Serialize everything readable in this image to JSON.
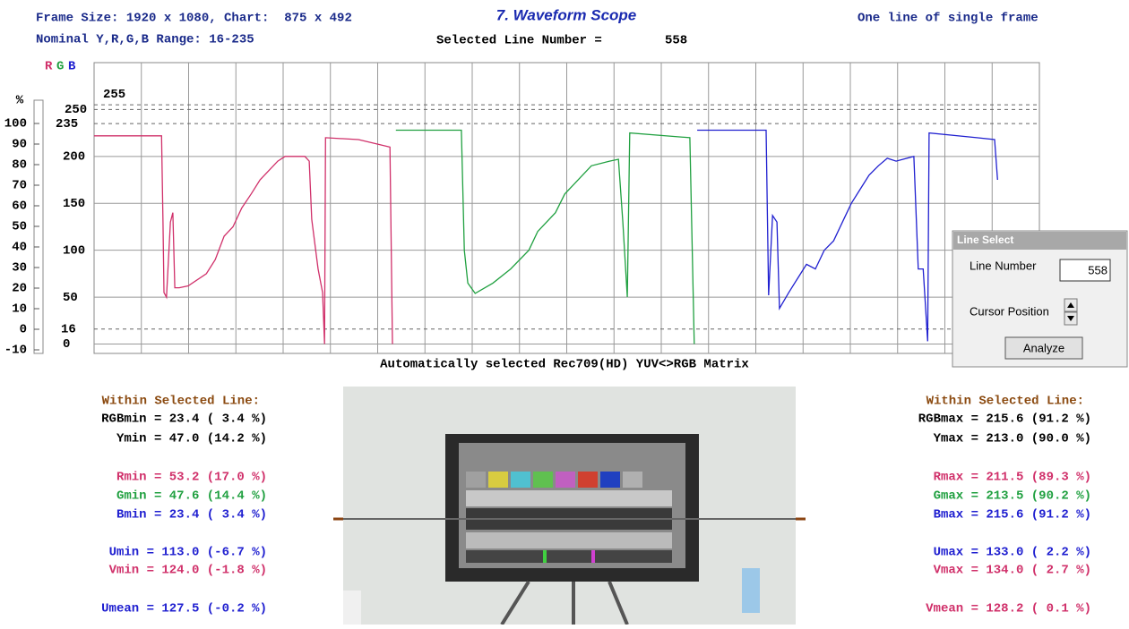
{
  "header": {
    "frame_size": "Frame Size: 1920 x 1080, Chart:  875 x 492",
    "range": "Nominal Y,R,G,B Range: 16-235",
    "title": "7. Waveform Scope",
    "line_label": "Selected Line Number =",
    "line_number": "558",
    "mode": "One line of single frame"
  },
  "scope": {
    "legend": [
      {
        "label": "R",
        "color": "#d0306a"
      },
      {
        "label": "G",
        "color": "#20a040"
      },
      {
        "label": "B",
        "color": "#2020d0"
      }
    ],
    "percent_label": "%",
    "plim": [
      -10,
      100
    ],
    "percent_ticks": [
      -10,
      0,
      10,
      20,
      30,
      40,
      50,
      60,
      70,
      80,
      90,
      100
    ],
    "ylim": [
      -10,
      300
    ],
    "xlim": [
      0,
      1920
    ],
    "code_ticks": [
      0,
      50,
      100,
      150,
      200
    ],
    "ref_lines": [
      16,
      235,
      250,
      255
    ],
    "matrix": "Automatically selected Rec709(HD) YUV<>RGB Matrix",
    "traces": [
      {
        "name": "R",
        "color": "#d0306a",
        "x": [
          0,
          137,
          140,
          142,
          147,
          155,
          160,
          164,
          173,
          191,
          228,
          246,
          264,
          282,
          300,
          319,
          337,
          355,
          373,
          388,
          428,
          437,
          442,
          455,
          464,
          468,
          470,
          537,
          601,
          606
        ],
        "values": [
          222,
          222,
          130,
          55,
          50,
          130,
          140,
          60,
          60,
          62,
          75,
          90,
          115,
          125,
          145,
          160,
          175,
          185,
          195,
          200,
          200,
          195,
          133,
          80,
          55,
          0,
          220,
          218,
          210,
          0
        ]
      },
      {
        "name": "G",
        "color": "#20a040",
        "x": [
          613,
          746,
          752,
          759,
          774,
          810,
          846,
          883,
          901,
          937,
          956,
          992,
          1010,
          1047,
          1065,
          1074,
          1083,
          1088,
          1210,
          1219
        ],
        "values": [
          228,
          228,
          100,
          65,
          54,
          65,
          80,
          100,
          120,
          140,
          160,
          180,
          190,
          195,
          197,
          130,
          50,
          225,
          220,
          0
        ]
      },
      {
        "name": "B",
        "color": "#2020d0",
        "x": [
          1225,
          1365,
          1370,
          1378,
          1387,
          1392,
          1411,
          1429,
          1447,
          1465,
          1483,
          1502,
          1520,
          1538,
          1556,
          1574,
          1593,
          1611,
          1629,
          1665,
          1674,
          1684,
          1693,
          1696,
          1793,
          1829,
          1835
        ],
        "values": [
          228,
          228,
          52,
          137,
          130,
          38,
          55,
          70,
          85,
          80,
          100,
          110,
          130,
          150,
          165,
          180,
          190,
          198,
          195,
          200,
          80,
          80,
          3,
          225,
          220,
          218,
          175
        ]
      }
    ]
  },
  "stats_left": {
    "heading": "Within Selected Line:",
    "rows": [
      {
        "text": "RGBmin = 23.4 ( 3.4 %)",
        "color": "#000000"
      },
      {
        "text": "Ymin = 47.0 (14.2 %)",
        "color": "#000000"
      },
      {
        "text": "Rmin = 53.2 (17.0 %)",
        "color": "#d0306a"
      },
      {
        "text": "Gmin = 47.6 (14.4 %)",
        "color": "#20a040"
      },
      {
        "text": "Bmin = 23.4 ( 3.4 %)",
        "color": "#2020d0"
      },
      {
        "text": "Umin = 113.0 (-6.7 %)",
        "color": "#2020d0"
      },
      {
        "text": "Vmin = 124.0 (-1.8 %)",
        "color": "#d0306a"
      },
      {
        "text": "Umean = 127.5 (-0.2 %)",
        "color": "#2020d0"
      }
    ]
  },
  "stats_right": {
    "heading": "Within Selected Line:",
    "rows": [
      {
        "text": "RGBmax = 215.6 (91.2 %)",
        "color": "#000000"
      },
      {
        "text": "Ymax = 213.0 (90.0 %)",
        "color": "#000000"
      },
      {
        "text": "Rmax = 211.5 (89.3 %)",
        "color": "#d0306a"
      },
      {
        "text": "Gmax = 213.5 (90.2 %)",
        "color": "#20a040"
      },
      {
        "text": "Bmax = 215.6 (91.2 %)",
        "color": "#2020d0"
      },
      {
        "text": "Umax = 133.0 ( 2.2 %)",
        "color": "#2020d0"
      },
      {
        "text": "Vmax = 134.0 ( 2.7 %)",
        "color": "#d0306a"
      },
      {
        "text": "Vmean = 128.2 ( 0.1 %)",
        "color": "#d0306a"
      }
    ]
  },
  "dialog": {
    "title": "Line Select",
    "line_label": "Line Number",
    "line_value": "558",
    "cursor_label": "Cursor Position",
    "button": "Analyze"
  }
}
